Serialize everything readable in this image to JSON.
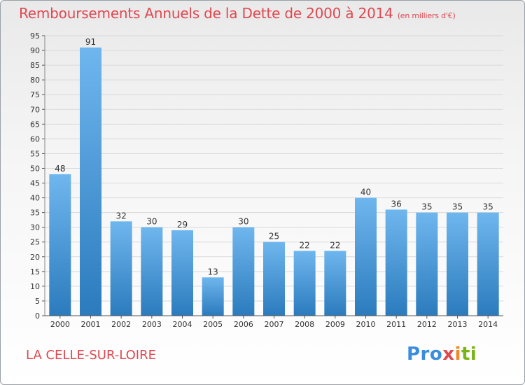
{
  "header": {
    "title": "Remboursements Annuels de la Dette de 2000 à 2014",
    "subtitle": "(en milliers d'€)"
  },
  "footer": {
    "city": "LA CELLE-SUR-LOIRE",
    "logo": "Proxiti"
  },
  "colors": {
    "title": "#e0474f",
    "bar_light": "#6fb6ee",
    "bar_dark": "#2b7bbd",
    "grid": "#d9d9d9"
  },
  "chart_data": {
    "type": "bar",
    "title": "Remboursements Annuels de la Dette de 2000 à 2014",
    "subtitle": "(en milliers d'€)",
    "categories": [
      "2000",
      "2001",
      "2002",
      "2003",
      "2004",
      "2005",
      "2006",
      "2007",
      "2008",
      "2009",
      "2010",
      "2011",
      "2012",
      "2013",
      "2014"
    ],
    "values": [
      48,
      91,
      32,
      30,
      29,
      13,
      30,
      25,
      22,
      22,
      40,
      36,
      35,
      35,
      35
    ],
    "xlabel": "",
    "ylabel": "",
    "ylim": [
      0,
      95
    ],
    "yticks": [
      0,
      5,
      10,
      15,
      20,
      25,
      30,
      35,
      40,
      45,
      50,
      55,
      60,
      65,
      70,
      75,
      80,
      85,
      90,
      95
    ],
    "grid": true,
    "data_labels": true
  }
}
